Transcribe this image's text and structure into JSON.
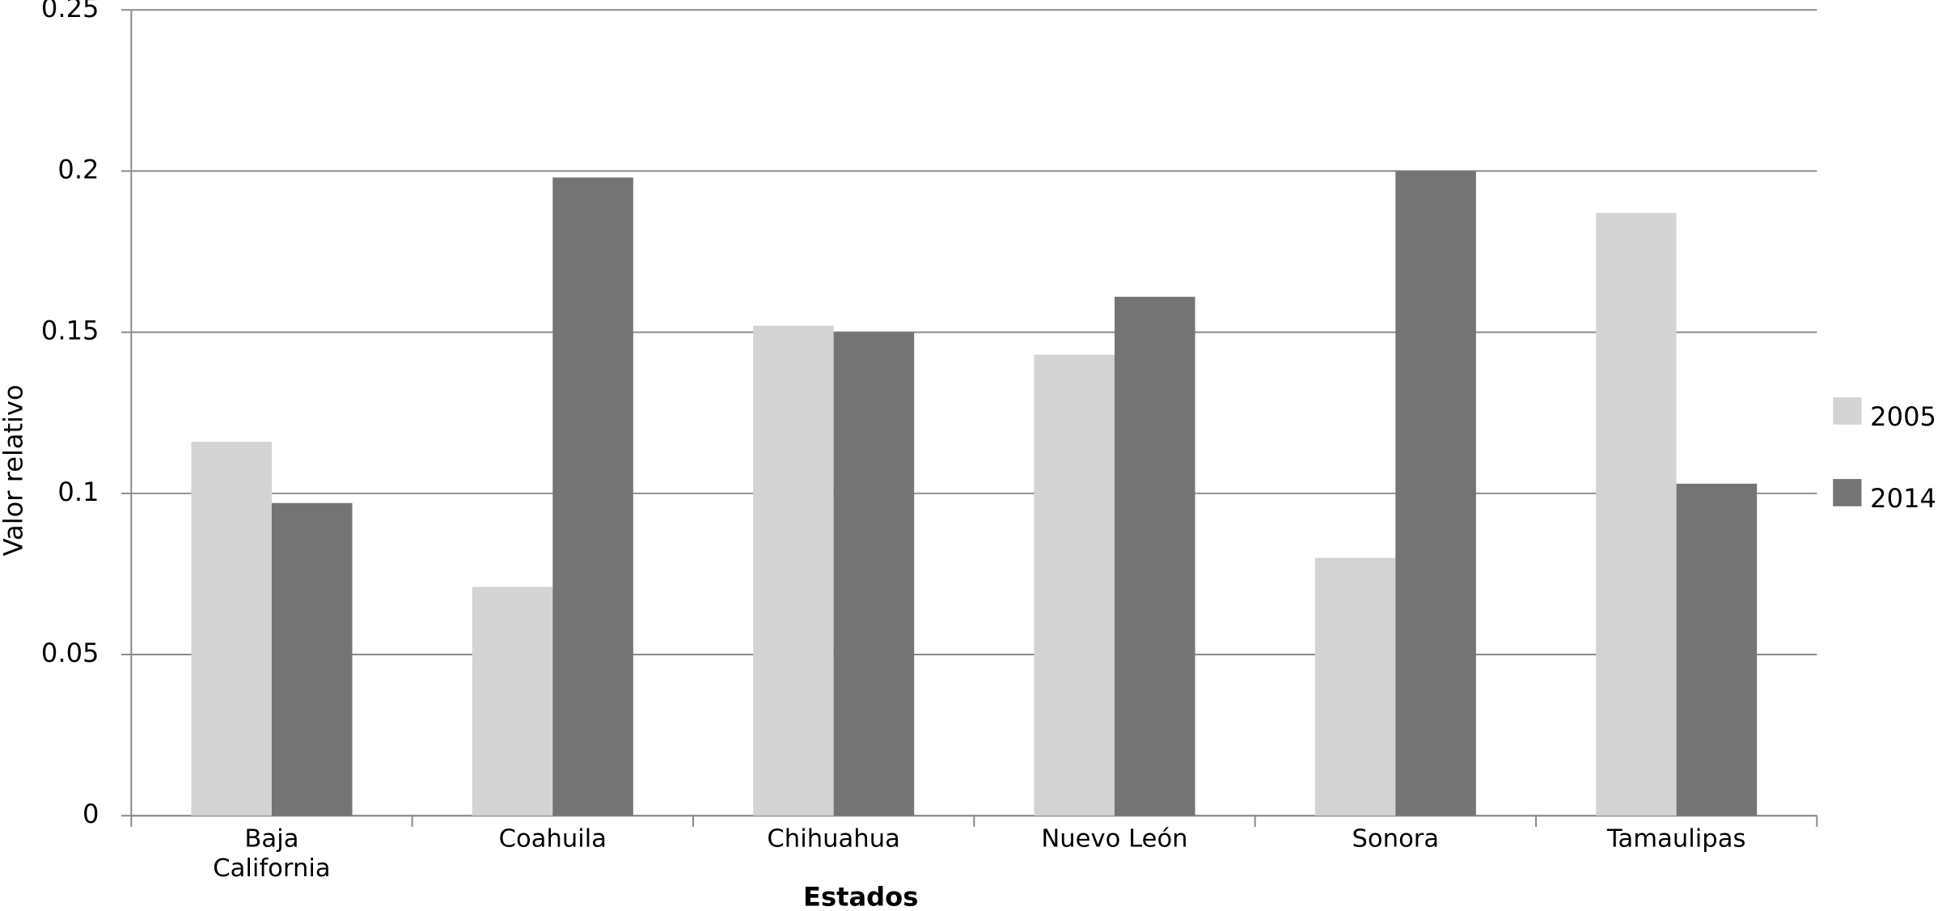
{
  "chart_data": {
    "type": "bar",
    "x_label": "Estados",
    "y_label": "Valor  relativo",
    "categories": [
      "Baja California",
      "Coahuila",
      "Chihuahua",
      "Nuevo León",
      "Sonora",
      "Tamaulipas"
    ],
    "series": [
      {
        "name": "2005",
        "color": "#d3d3d3",
        "values": [
          0.116,
          0.071,
          0.152,
          0.143,
          0.08,
          0.187
        ]
      },
      {
        "name": "2014",
        "color": "#747474",
        "values": [
          0.097,
          0.198,
          0.15,
          0.161,
          0.2,
          0.103
        ]
      }
    ],
    "ylim": [
      0,
      0.25
    ],
    "yticks": [
      0,
      0.05,
      0.1,
      0.15,
      0.2,
      0.25
    ],
    "grid": true,
    "legend": "right"
  }
}
